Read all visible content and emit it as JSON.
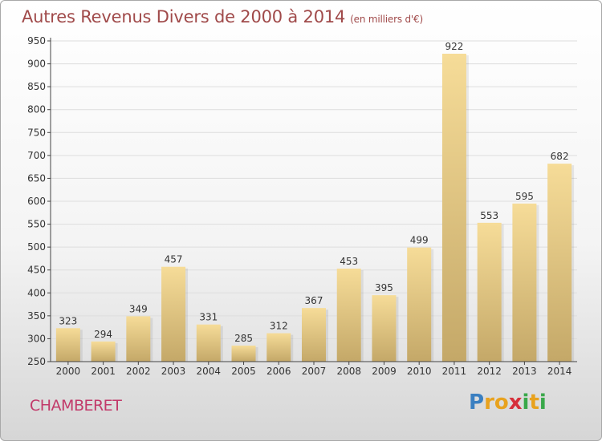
{
  "header": {
    "title": "Autres Revenus Divers de 2000 à 2014",
    "subtitle": "(en milliers d'€)"
  },
  "footer": {
    "commune": "CHAMBERET",
    "logo": "Proxiti"
  },
  "colors": {
    "title": "#a04a4a",
    "commune": "#c23a6a",
    "bar_light": "#f6dc98",
    "bar_dark": "#c4a868",
    "grid": "#dddddd"
  },
  "chart_data": {
    "type": "bar",
    "title": "Autres Revenus Divers de 2000 à 2014",
    "subtitle": "(en milliers d'€)",
    "categories": [
      "2000",
      "2001",
      "2002",
      "2003",
      "2004",
      "2005",
      "2006",
      "2007",
      "2008",
      "2009",
      "2010",
      "2011",
      "2012",
      "2013",
      "2014"
    ],
    "values": [
      323,
      294,
      349,
      457,
      331,
      285,
      312,
      367,
      453,
      395,
      499,
      922,
      553,
      595,
      682
    ],
    "ylim": [
      250,
      950
    ],
    "yticks": [
      250,
      300,
      350,
      400,
      450,
      500,
      550,
      600,
      650,
      700,
      750,
      800,
      850,
      900,
      950
    ],
    "grid": true,
    "data_labels": true
  }
}
